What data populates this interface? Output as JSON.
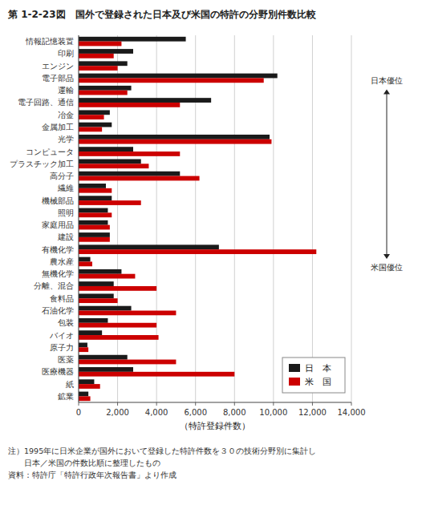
{
  "chart_data": {
    "type": "bar",
    "orientation": "horizontal",
    "title": "第 1-2-23図　国外で登録された日本及び米国の特許の分野別件数比較",
    "categories": [
      "情報記憶装置",
      "印刷",
      "エンジン",
      "電子部品",
      "運輸",
      "電子回路、通信",
      "冶金",
      "金属加工",
      "光学",
      "コンピュータ",
      "プラスチック加工",
      "高分子",
      "繊維",
      "機械部品",
      "照明",
      "家庭用品",
      "建設",
      "有機化学",
      "農水産",
      "無機化学",
      "分離、混合",
      "食料品",
      "石油化学",
      "包装",
      "バイオ",
      "原子力",
      "医薬",
      "医療機器",
      "紙",
      "鉱業"
    ],
    "series": [
      {
        "name": "日　本",
        "color": "#1a1a1a",
        "values": [
          5500,
          2800,
          2500,
          10200,
          2700,
          6800,
          1600,
          1700,
          9800,
          2800,
          3200,
          5200,
          1400,
          1700,
          1500,
          1500,
          1600,
          7200,
          600,
          2200,
          1800,
          1800,
          2700,
          1500,
          1200,
          450,
          2500,
          2800,
          800,
          500
        ]
      },
      {
        "name": "米　国",
        "color": "#cc0000",
        "values": [
          2200,
          1800,
          2000,
          9500,
          2500,
          5200,
          1300,
          1200,
          9900,
          5200,
          3600,
          6200,
          1700,
          3200,
          1700,
          1600,
          1600,
          12200,
          700,
          2900,
          4000,
          2000,
          5000,
          4000,
          4100,
          500,
          5000,
          8000,
          1100,
          600
        ]
      }
    ],
    "x_label": "（特許登録件数）",
    "xlim": [
      0,
      14000
    ],
    "xticks": [
      0,
      {
        "value": 2000,
        "label": "2,000"
      },
      {
        "value": 4000,
        "label": "4,000"
      },
      {
        "value": 6000,
        "label": "6,000"
      },
      {
        "value": 8000,
        "label": "8,000"
      },
      {
        "value": 10000,
        "label": "10,000"
      },
      {
        "value": 12000,
        "label": "12,000"
      },
      {
        "value": 14000,
        "label": "14,000"
      }
    ],
    "grid": true,
    "legend": "lower right",
    "annotations": [
      "日本優位",
      "米国優位"
    ],
    "notes": [
      "注）1995年に日米企業が国外において登録した特許件数を３０の技術分野別に集計し",
      "　　日本／米国の件数比順に整理したもの",
      "資料：特許庁「特許行政年次報告書」より作成"
    ]
  }
}
